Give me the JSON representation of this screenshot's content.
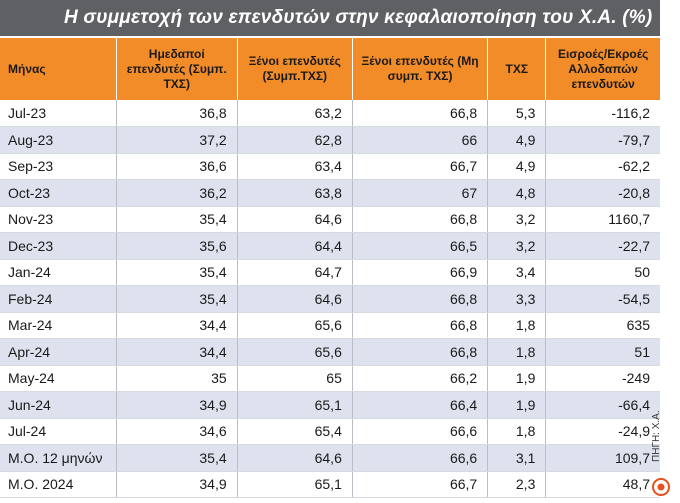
{
  "title": "Η συμμετοχή των επενδυτών στην κεφαλαιοποίηση του Χ.Α. (%)",
  "headers": [
    "Μήνας",
    "Ημεδαποί επενδυτές (Συμπ. ΤΧΣ)",
    "Ξένοι επενδυτές (Συμπ.ΤΧΣ)",
    "Ξένοι επενδυτές (Μη συμπ. ΤΧΣ)",
    "ΤΧΣ",
    "Εισροές/Εκροές Αλλοδαπών επενδυτών"
  ],
  "rows": [
    [
      "Jul-23",
      "36,8",
      "63,2",
      "66,8",
      "5,3",
      "-116,2"
    ],
    [
      "Aug-23",
      "37,2",
      "62,8",
      "66",
      "4,9",
      "-79,7"
    ],
    [
      "Sep-23",
      "36,6",
      "63,4",
      "66,7",
      "4,9",
      "-62,2"
    ],
    [
      "Oct-23",
      "36,2",
      "63,8",
      "67",
      "4,8",
      "-20,8"
    ],
    [
      "Nov-23",
      "35,4",
      "64,6",
      "66,8",
      "3,2",
      "1160,7"
    ],
    [
      "Dec-23",
      "35,6",
      "64,4",
      "66,5",
      "3,2",
      "-22,7"
    ],
    [
      "Jan-24",
      "35,4",
      "64,7",
      "66,9",
      "3,4",
      "50"
    ],
    [
      "Feb-24",
      "35,4",
      "64,6",
      "66,8",
      "3,3",
      "-54,5"
    ],
    [
      "Mar-24",
      "34,4",
      "65,6",
      "66,8",
      "1,8",
      "635"
    ],
    [
      "Apr-24",
      "34,4",
      "65,6",
      "66,8",
      "1,8",
      "51"
    ],
    [
      "May-24",
      "35",
      "65",
      "66,2",
      "1,9",
      "-249"
    ],
    [
      "Jun-24",
      "34,9",
      "65,1",
      "66,4",
      "1,9",
      "-66,4"
    ],
    [
      "Jul-24",
      "34,6",
      "65,4",
      "66,6",
      "1,8",
      "-24,9"
    ],
    [
      "Μ.Ο. 12 μηνών",
      "35,4",
      "64,6",
      "66,6",
      "3,1",
      "109,7"
    ],
    [
      "Μ.Ο. 2024",
      "34,9",
      "65,1",
      "66,7",
      "2,3",
      "48,7"
    ]
  ],
  "source": "ΠΗΓΗ: Χ.Α.",
  "colors": {
    "title_bg": "#5f6064",
    "header_bg": "#f28c28",
    "stripe": "#dde2ee",
    "logo": "#e8501e"
  }
}
